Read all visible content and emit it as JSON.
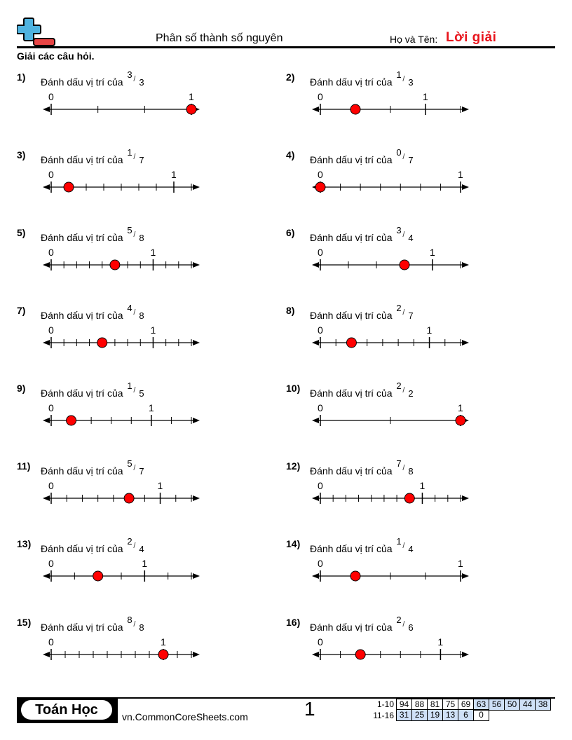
{
  "header": {
    "title": "Phân số thành số nguyên",
    "name_label": "Họ và Tên:",
    "name_value": "Lời giải",
    "logo": "plus-minus-logo-icon"
  },
  "instructions": "Giải các câu hỏi.",
  "prompt_text": "Đánh dấu vị trí của",
  "axis_labels": {
    "zero": "0",
    "one": "1"
  },
  "colors": {
    "accent_red": "#e8141c",
    "dot_fill": "#ff0000",
    "logo_blue": "#4fb3e0",
    "logo_red": "#e84545",
    "key_shade": "#cfe0f7"
  },
  "problems": [
    {
      "label": "1)",
      "num": "3",
      "den": "3",
      "segments": 3,
      "denominator": 3,
      "numerator": 3
    },
    {
      "label": "2)",
      "num": "1",
      "den": "3",
      "segments": 4,
      "denominator": 3,
      "numerator": 1
    },
    {
      "label": "3)",
      "num": "1",
      "den": "7",
      "segments": 8,
      "denominator": 7,
      "numerator": 1
    },
    {
      "label": "4)",
      "num": "0",
      "den": "7",
      "segments": 7,
      "denominator": 7,
      "numerator": 0
    },
    {
      "label": "5)",
      "num": "5",
      "den": "8",
      "segments": 11,
      "denominator": 8,
      "numerator": 5
    },
    {
      "label": "6)",
      "num": "3",
      "den": "4",
      "segments": 5,
      "denominator": 4,
      "numerator": 3
    },
    {
      "label": "7)",
      "num": "4",
      "den": "8",
      "segments": 11,
      "denominator": 8,
      "numerator": 4
    },
    {
      "label": "8)",
      "num": "2",
      "den": "7",
      "segments": 9,
      "denominator": 7,
      "numerator": 2
    },
    {
      "label": "9)",
      "num": "1",
      "den": "5",
      "segments": 7,
      "denominator": 5,
      "numerator": 1
    },
    {
      "label": "10)",
      "num": "2",
      "den": "2",
      "segments": 2,
      "denominator": 2,
      "numerator": 2
    },
    {
      "label": "11)",
      "num": "5",
      "den": "7",
      "segments": 9,
      "denominator": 7,
      "numerator": 5
    },
    {
      "label": "12)",
      "num": "7",
      "den": "8",
      "segments": 11,
      "denominator": 8,
      "numerator": 7
    },
    {
      "label": "13)",
      "num": "2",
      "den": "4",
      "segments": 6,
      "denominator": 4,
      "numerator": 2
    },
    {
      "label": "14)",
      "num": "1",
      "den": "4",
      "segments": 4,
      "denominator": 4,
      "numerator": 1
    },
    {
      "label": "15)",
      "num": "8",
      "den": "8",
      "segments": 10,
      "denominator": 8,
      "numerator": 8
    },
    {
      "label": "16)",
      "num": "2",
      "den": "6",
      "segments": 7,
      "denominator": 6,
      "numerator": 2
    }
  ],
  "footer": {
    "brand": "Toán Học",
    "site": "vn.CommonCoreSheets.com",
    "page": "1",
    "key": [
      {
        "label": "1-10",
        "cells": [
          "94",
          "88",
          "81",
          "75",
          "69",
          "63",
          "56",
          "50",
          "44",
          "38"
        ],
        "shaded": [
          false,
          false,
          false,
          false,
          false,
          true,
          true,
          true,
          true,
          true
        ]
      },
      {
        "label": "11-16",
        "cells": [
          "31",
          "25",
          "19",
          "13",
          "6",
          "0"
        ],
        "shaded": [
          true,
          true,
          true,
          true,
          true,
          false
        ]
      }
    ]
  }
}
